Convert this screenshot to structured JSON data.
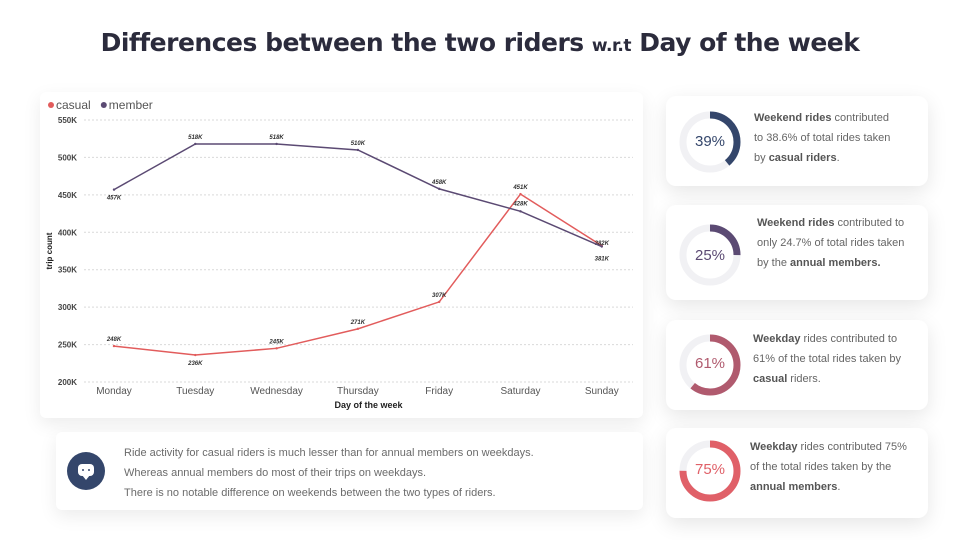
{
  "title": {
    "part1": "Differences between the two riders",
    "part2": "w.r.t",
    "part3": "Day of the week"
  },
  "chart_data": {
    "type": "line",
    "categories": [
      "Monday",
      "Tuesday",
      "Wednesday",
      "Thursday",
      "Friday",
      "Saturday",
      "Sunday"
    ],
    "series": [
      {
        "name": "casual",
        "color": "#e25c5c",
        "values": [
          248,
          236,
          245,
          271,
          307,
          451,
          382
        ],
        "labels": [
          "248K",
          "236K",
          "245K",
          "271K",
          "307K",
          "451K",
          "382K"
        ]
      },
      {
        "name": "member",
        "color": "#5b4a73",
        "values": [
          457,
          518,
          518,
          510,
          458,
          428,
          381
        ],
        "labels": [
          "457K",
          "518K",
          "518K",
          "510K",
          "458K",
          "428K",
          "381K"
        ]
      }
    ],
    "xlabel": "Day of the week",
    "ylabel": "trip count",
    "ylim": [
      200,
      550
    ],
    "yticks": [
      200,
      250,
      300,
      350,
      400,
      450,
      500,
      550
    ],
    "ytick_labels": [
      "200K",
      "250K",
      "300K",
      "350K",
      "400K",
      "450K",
      "500K",
      "550K"
    ],
    "grid": true,
    "legend_position": "top-left"
  },
  "note": {
    "lines": [
      "Ride activity for casual riders is much lesser than for annual members on weekdays.",
      "Whereas annual members do most of their trips on weekdays.",
      "There is no notable difference on weekends between the two types of riders."
    ]
  },
  "cards": [
    {
      "percent_label": "39%",
      "fraction": 0.39,
      "color": "#34466b",
      "bold1": "Weekend rides",
      "text1": " contributed",
      "text2": "to 38.6% of total rides taken",
      "text3a": "by ",
      "bold3": "casual riders",
      "text3b": "."
    },
    {
      "percent_label": "25%",
      "fraction": 0.25,
      "color": "#5b4a73",
      "bold1": "Weekend rides",
      "text1": " contributed to",
      "text2": "only 24.7% of total rides taken",
      "text3a": "by the ",
      "bold3": "annual members.",
      "text3b": ""
    },
    {
      "percent_label": "61%",
      "fraction": 0.61,
      "color": "#b05a6e",
      "bold1": "Weekday",
      "text1": " rides contributed to",
      "text2": "61% of the total rides taken by",
      "text3a": "",
      "bold3": "casual",
      "text3b": " riders."
    },
    {
      "percent_label": "75%",
      "fraction": 0.75,
      "color": "#e06068",
      "bold1": "Weekday",
      "text1": " rides contributed 75%",
      "text2": "of the total rides taken by the",
      "text3a": "",
      "bold3": "annual members",
      "text3b": "."
    }
  ]
}
